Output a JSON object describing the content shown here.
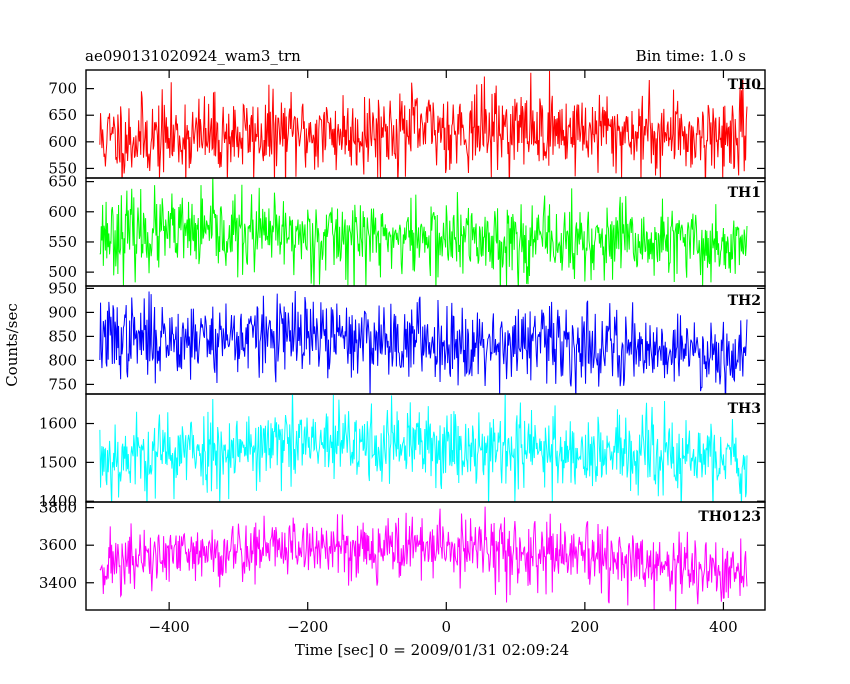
{
  "header": {
    "title": "ae090131020924_wam3_trn",
    "bin_time": "Bin time: 1.0 s"
  },
  "chart_data": {
    "type": "line",
    "title": "ae090131020924_wam3_trn",
    "subtitle": "Bin time: 1.0 s",
    "xlabel": "Time [sec] 0 = 2009/01/31 02:09:24",
    "ylabel": "Counts/sec",
    "xlim": [
      -520,
      460
    ],
    "x_start": -500,
    "x_end": 434,
    "x_step": 1,
    "x_ticks": [
      -400,
      -200,
      0,
      200,
      400
    ],
    "x_tick_labels": [
      "−400",
      "−200",
      "0",
      "200",
      "400"
    ],
    "grid": false,
    "panels": [
      {
        "name": "TH0",
        "color": "#ff0000",
        "ylim": [
          532,
          735
        ],
        "y_ticks": [
          550,
          600,
          650,
          700
        ],
        "y_tick_labels": [
          "550",
          "600",
          "650",
          "700"
        ],
        "trend": [
          [
            -500,
            605
          ],
          [
            -200,
            615
          ],
          [
            0,
            625
          ],
          [
            100,
            625
          ],
          [
            434,
            610
          ]
        ],
        "noise_sd": 38,
        "seed": 11
      },
      {
        "name": "TH1",
        "color": "#00ff00",
        "ylim": [
          477,
          656
        ],
        "y_ticks": [
          500,
          550,
          600,
          650
        ],
        "y_tick_labels": [
          "500",
          "550",
          "600",
          "650"
        ],
        "trend": [
          [
            -500,
            565
          ],
          [
            -300,
            563
          ],
          [
            0,
            555
          ],
          [
            200,
            550
          ],
          [
            434,
            545
          ]
        ],
        "noise_sd": 32,
        "seed": 23
      },
      {
        "name": "TH2",
        "color": "#0000ff",
        "ylim": [
          730,
          955
        ],
        "y_ticks": [
          750,
          800,
          850,
          900,
          950
        ],
        "y_tick_labels": [
          "750",
          "800",
          "850",
          "900",
          "950"
        ],
        "trend": [
          [
            -500,
            845
          ],
          [
            -250,
            850
          ],
          [
            0,
            840
          ],
          [
            250,
            830
          ],
          [
            434,
            815
          ]
        ],
        "noise_sd": 40,
        "seed": 37
      },
      {
        "name": "TH3",
        "color": "#00ffff",
        "ylim": [
          1398,
          1676
        ],
        "y_ticks": [
          1400,
          1500,
          1600
        ],
        "y_tick_labels": [
          "1400",
          "1500",
          "1600"
        ],
        "trend": [
          [
            -500,
            1510
          ],
          [
            -250,
            1545
          ],
          [
            0,
            1545
          ],
          [
            200,
            1525
          ],
          [
            434,
            1505
          ]
        ],
        "noise_sd": 52,
        "seed": 53
      },
      {
        "name": "TH0123",
        "color": "#ff00ff",
        "ylim": [
          3255,
          3830
        ],
        "y_ticks": [
          3400,
          3600,
          3800
        ],
        "y_tick_labels": [
          "3400",
          "3600",
          "3800"
        ],
        "trend": [
          [
            -500,
            3500
          ],
          [
            -250,
            3590
          ],
          [
            0,
            3590
          ],
          [
            200,
            3530
          ],
          [
            434,
            3440
          ]
        ],
        "noise_sd": 85,
        "seed": 71
      }
    ]
  }
}
